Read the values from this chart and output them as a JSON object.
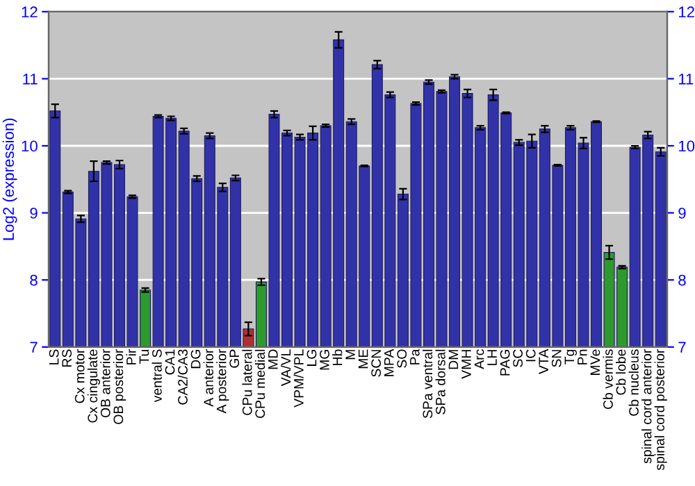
{
  "chart_data": {
    "type": "bar",
    "ylabel": "Log2 (expression)",
    "categories": [
      "LS",
      "RS",
      "Cx motor",
      "Cx cingulate",
      "OB anterior",
      "OB posterior",
      "Pir",
      "Tu",
      "ventral S",
      "CA1",
      "CA2/CA3",
      "DG",
      "A anterior",
      "A posterior",
      "GP",
      "CPu lateral",
      "CPu medial",
      "MD",
      "VA/VL",
      "VPM/VPL",
      "LG",
      "MG",
      "Hb",
      "M",
      "ME",
      "SCN",
      "MPA",
      "SO",
      "Pa",
      "SPa ventral",
      "SPa dorsal",
      "DM",
      "VMH",
      "Arc",
      "LH",
      "PAG",
      "SC",
      "IC",
      "VTA",
      "SN",
      "Tg",
      "Pn",
      "MVe",
      "Cb vermis",
      "Cb lobe",
      "Cb nucleus",
      "spinal cord anterior",
      "spinal cord posterior"
    ],
    "values": [
      10.52,
      9.31,
      8.91,
      9.62,
      9.75,
      9.72,
      9.24,
      7.85,
      10.44,
      10.41,
      10.22,
      9.51,
      10.15,
      9.38,
      9.52,
      7.27,
      7.97,
      10.47,
      10.19,
      10.13,
      10.19,
      10.3,
      11.58,
      10.36,
      9.7,
      11.21,
      10.76,
      9.28,
      10.63,
      10.95,
      10.81,
      11.03,
      10.78,
      10.27,
      10.76,
      10.49,
      10.05,
      10.07,
      10.25,
      9.71,
      10.27,
      10.04,
      10.36,
      8.41,
      8.19,
      9.98,
      10.16,
      9.91
    ],
    "errors": [
      0.1,
      0.02,
      0.05,
      0.15,
      0.02,
      0.06,
      0.02,
      0.03,
      0.02,
      0.03,
      0.04,
      0.04,
      0.04,
      0.06,
      0.04,
      0.1,
      0.05,
      0.05,
      0.04,
      0.04,
      0.1,
      0.02,
      0.12,
      0.04,
      0.01,
      0.06,
      0.04,
      0.08,
      0.02,
      0.03,
      0.02,
      0.03,
      0.06,
      0.03,
      0.08,
      0.01,
      0.04,
      0.1,
      0.05,
      0.01,
      0.03,
      0.08,
      0.01,
      0.1,
      0.02,
      0.02,
      0.05,
      0.06
    ],
    "colors": [
      "#3232a8",
      "#3232a8",
      "#3232a8",
      "#3232a8",
      "#3232a8",
      "#3232a8",
      "#3232a8",
      "#2e9a2e",
      "#3232a8",
      "#3232a8",
      "#3232a8",
      "#3232a8",
      "#3232a8",
      "#3232a8",
      "#3232a8",
      "#b03030",
      "#2e9a2e",
      "#3232a8",
      "#3232a8",
      "#3232a8",
      "#3232a8",
      "#3232a8",
      "#3232a8",
      "#3232a8",
      "#3232a8",
      "#3232a8",
      "#3232a8",
      "#3232a8",
      "#3232a8",
      "#3232a8",
      "#3232a8",
      "#3232a8",
      "#3232a8",
      "#3232a8",
      "#3232a8",
      "#3232a8",
      "#3232a8",
      "#3232a8",
      "#3232a8",
      "#3232a8",
      "#3232a8",
      "#3232a8",
      "#3232a8",
      "#2e9a2e",
      "#2e9a2e",
      "#3232a8",
      "#3232a8",
      "#3232a8"
    ],
    "ylim": [
      7,
      12
    ],
    "yticks": [
      7,
      8,
      9,
      10,
      11,
      12
    ],
    "y2lim": [
      7,
      12
    ],
    "y2ticks": [
      7,
      8,
      9,
      10,
      11,
      12
    ],
    "grid": "y"
  }
}
